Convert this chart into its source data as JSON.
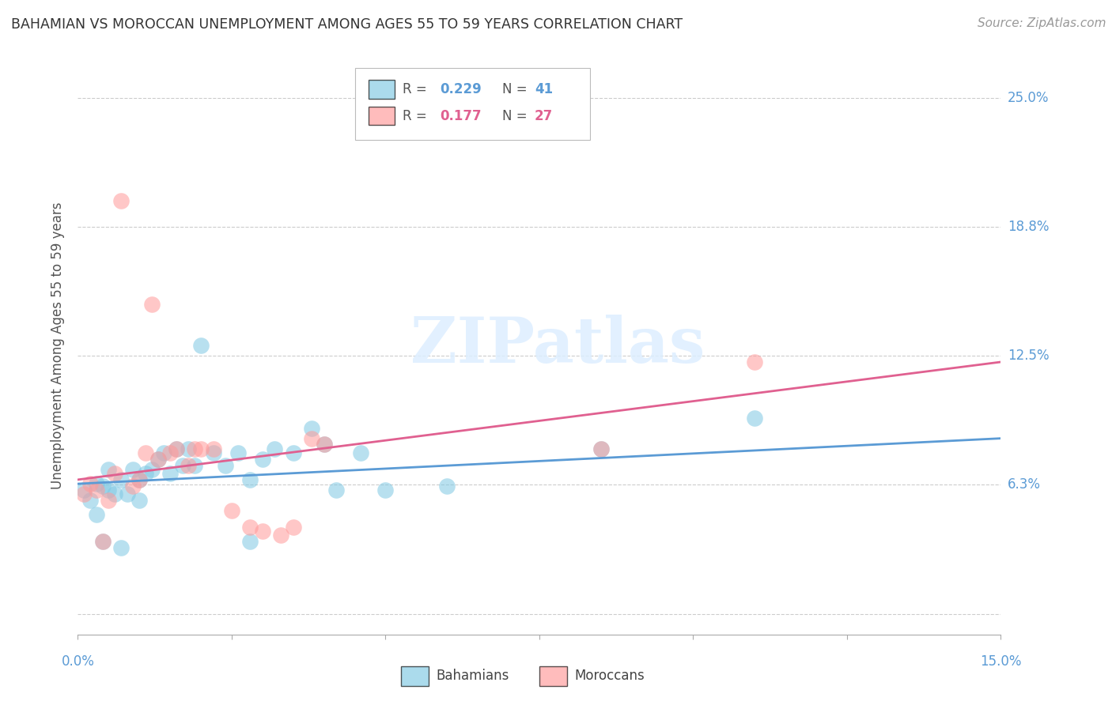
{
  "title": "BAHAMIAN VS MOROCCAN UNEMPLOYMENT AMONG AGES 55 TO 59 YEARS CORRELATION CHART",
  "source": "Source: ZipAtlas.com",
  "ylabel": "Unemployment Among Ages 55 to 59 years",
  "xlim": [
    0.0,
    0.15
  ],
  "ylim": [
    -0.01,
    0.27
  ],
  "ytick_vals": [
    0.0,
    0.0625,
    0.125,
    0.1875,
    0.25
  ],
  "ytick_labels": [
    "",
    "6.3%",
    "12.5%",
    "18.8%",
    "25.0%"
  ],
  "xtick_positions": [
    0.0,
    0.025,
    0.05,
    0.075,
    0.1,
    0.125,
    0.15
  ],
  "bahamian_color": "#7ec8e3",
  "moroccan_color": "#ff9999",
  "bahamian_line_color": "#5b9bd5",
  "moroccan_line_color": "#e06090",
  "watermark_text": "ZIPatlas",
  "bahamian_x": [
    0.001,
    0.002,
    0.003,
    0.003,
    0.004,
    0.004,
    0.005,
    0.005,
    0.006,
    0.007,
    0.007,
    0.008,
    0.009,
    0.01,
    0.01,
    0.011,
    0.012,
    0.013,
    0.014,
    0.015,
    0.016,
    0.017,
    0.018,
    0.019,
    0.02,
    0.022,
    0.024,
    0.026,
    0.028,
    0.03,
    0.032,
    0.035,
    0.038,
    0.04,
    0.042,
    0.046,
    0.05,
    0.06,
    0.085,
    0.11,
    0.028
  ],
  "bahamian_y": [
    0.06,
    0.055,
    0.063,
    0.048,
    0.062,
    0.035,
    0.06,
    0.07,
    0.058,
    0.065,
    0.032,
    0.058,
    0.07,
    0.065,
    0.055,
    0.068,
    0.07,
    0.075,
    0.078,
    0.068,
    0.08,
    0.072,
    0.08,
    0.072,
    0.13,
    0.078,
    0.072,
    0.078,
    0.065,
    0.075,
    0.08,
    0.078,
    0.09,
    0.082,
    0.06,
    0.078,
    0.06,
    0.062,
    0.08,
    0.095,
    0.035
  ],
  "moroccan_x": [
    0.001,
    0.002,
    0.003,
    0.004,
    0.005,
    0.006,
    0.007,
    0.009,
    0.01,
    0.011,
    0.012,
    0.013,
    0.015,
    0.016,
    0.018,
    0.019,
    0.02,
    0.022,
    0.025,
    0.028,
    0.03,
    0.033,
    0.035,
    0.038,
    0.04,
    0.085,
    0.11
  ],
  "moroccan_y": [
    0.058,
    0.063,
    0.06,
    0.035,
    0.055,
    0.068,
    0.2,
    0.062,
    0.065,
    0.078,
    0.15,
    0.075,
    0.078,
    0.08,
    0.072,
    0.08,
    0.08,
    0.08,
    0.05,
    0.042,
    0.04,
    0.038,
    0.042,
    0.085,
    0.082,
    0.08,
    0.122
  ],
  "bah_trend_x": [
    0.0,
    0.15
  ],
  "bah_trend_y_start": 0.063,
  "bah_trend_y_end": 0.085,
  "mor_trend_y_start": 0.065,
  "mor_trend_y_end": 0.122
}
